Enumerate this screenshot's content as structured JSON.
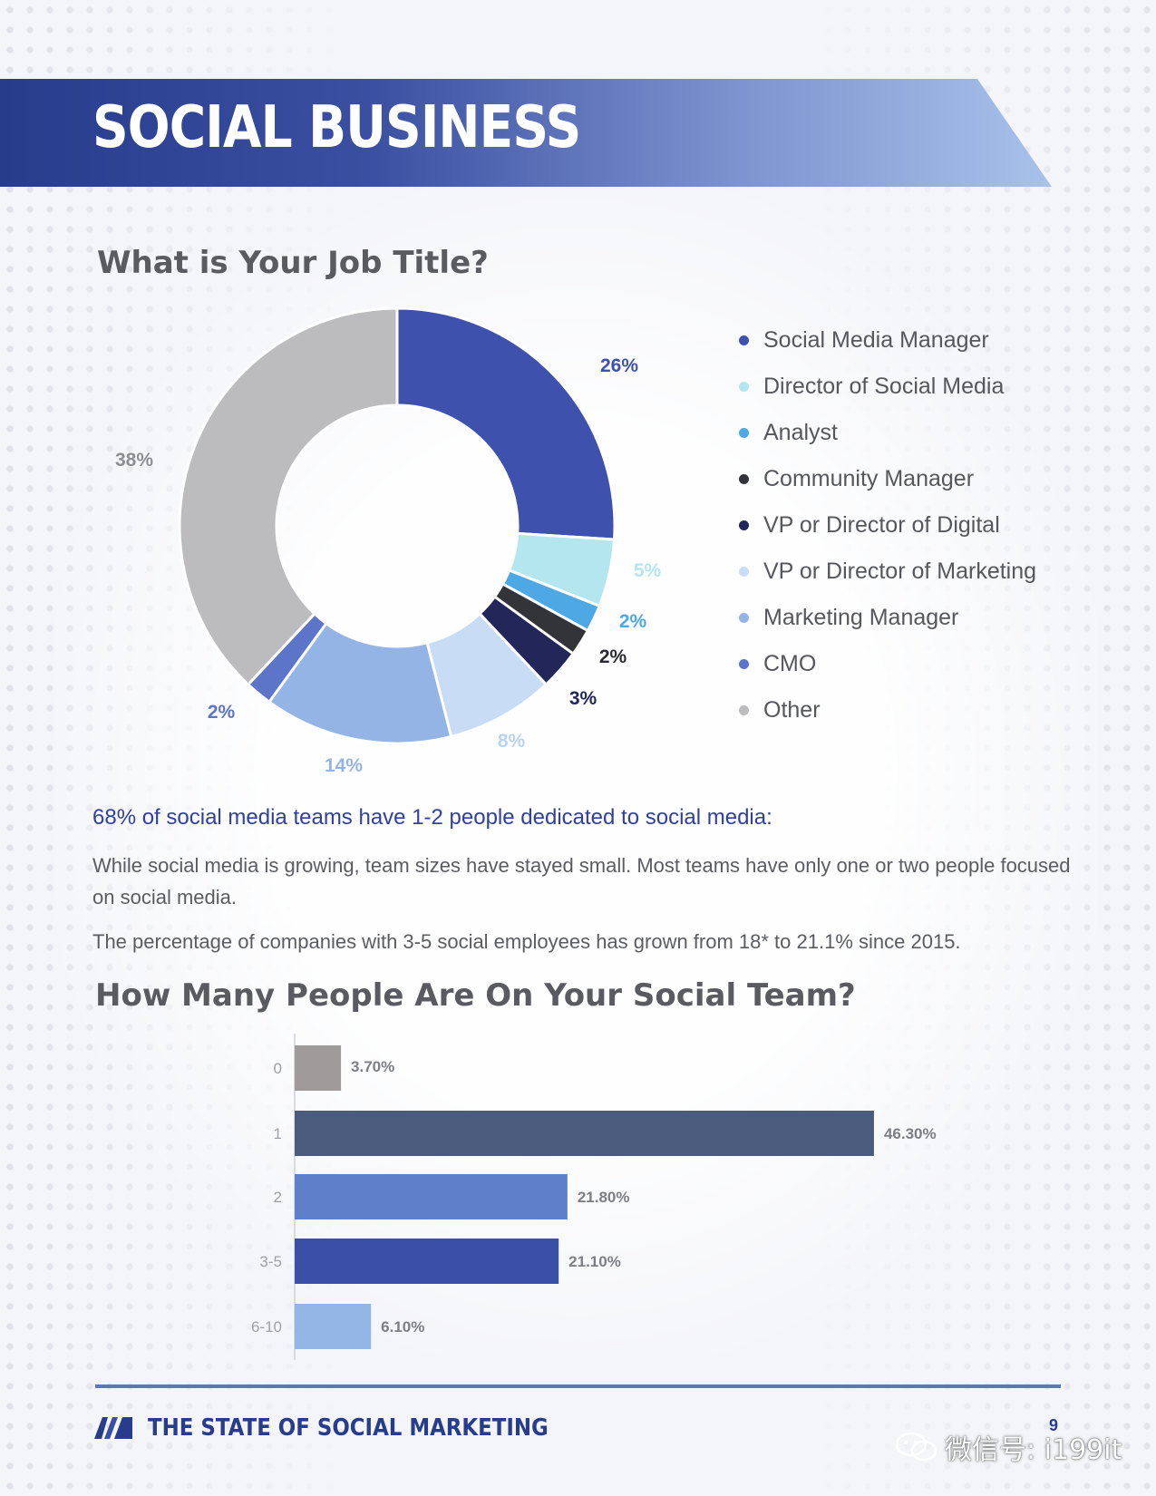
{
  "header": {
    "title": "SOCIAL BUSINESS"
  },
  "job_title_chart": {
    "title": "What is Your Job Title?",
    "legend": [
      {
        "label": "Social Media Manager",
        "color": "#3e52ad"
      },
      {
        "label": "Director of Social Media",
        "color": "#b4e6f0"
      },
      {
        "label": "Analyst",
        "color": "#4ea8e4"
      },
      {
        "label": "Community Manager",
        "color": "#333438"
      },
      {
        "label": "VP or Director of Digital",
        "color": "#222659"
      },
      {
        "label": "VP or Director of Marketing",
        "color": "#c8ddf5"
      },
      {
        "label": "Marketing Manager",
        "color": "#94b4e6"
      },
      {
        "label": "CMO",
        "color": "#5c75c9"
      },
      {
        "label": "Other",
        "color": "#bcbcbe"
      }
    ]
  },
  "team_text": {
    "headline": "68% of social media teams have 1-2 people dedicated to social media:",
    "paragraph1": "While social media is growing, team sizes have stayed small. Most teams have only one or two people focused on social media.",
    "paragraph2": "The percentage of companies with 3-5 social employees has grown from 18* to 21.1% since 2015."
  },
  "team_chart": {
    "title": "How Many People Are On Your Social Team?"
  },
  "footer": {
    "title": "THE STATE OF SOCIAL MARKETING",
    "page": "9",
    "watermark": "微信号: i199it"
  },
  "chart_data": [
    {
      "type": "pie",
      "title": "What is Your Job Title?",
      "categories": [
        "Social Media Manager",
        "Director of Social Media",
        "Analyst",
        "Community Manager",
        "VP or Director of Digital",
        "VP or Director of Marketing",
        "Marketing Manager",
        "CMO",
        "Other"
      ],
      "values": [
        26,
        5,
        2,
        2,
        3,
        8,
        14,
        2,
        38
      ],
      "labels": [
        "26%",
        "5%",
        "2%",
        "2%",
        "3%",
        "8%",
        "14%",
        "2%",
        "38%"
      ],
      "colors": [
        "#3e52ad",
        "#b4e6f0",
        "#4ea8e4",
        "#333438",
        "#222659",
        "#c8ddf5",
        "#94b4e6",
        "#5c75c9",
        "#bcbcbe"
      ],
      "label_colors": [
        "#3e52ad",
        "#b4e6f0",
        "#4ea8e4",
        "#2a2b30",
        "#222659",
        "#b8d2f0",
        "#94b4e6",
        "#5c75c9",
        "#8d8e92"
      ],
      "legend": "right"
    },
    {
      "type": "bar",
      "orientation": "horizontal",
      "title": "How Many People Are On Your Social Team?",
      "categories": [
        "0",
        "1",
        "2",
        "3-5",
        "6-10"
      ],
      "values": [
        3.7,
        46.3,
        21.8,
        21.1,
        6.1
      ],
      "labels": [
        "3.70%",
        "46.30%",
        "21.80%",
        "21.10%",
        "6.10%"
      ],
      "colors": [
        "#9f9b9b",
        "#4a5b7e",
        "#5f80c8",
        "#3a4fa6",
        "#93b6e6"
      ]
    }
  ]
}
